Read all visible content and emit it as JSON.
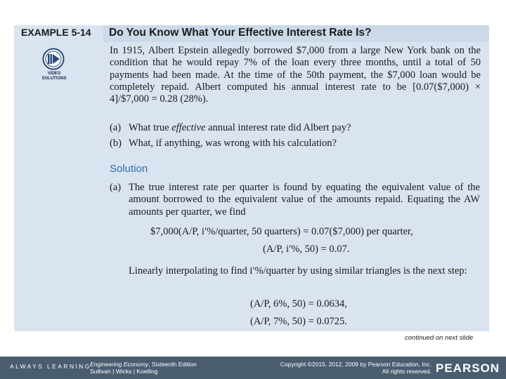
{
  "example": {
    "label": "EXAMPLE 5-14",
    "title": "Do You Know What Your Effective Interest Rate Is?",
    "video_caption_1": "VIDEO",
    "video_caption_2": "SOLUTIONS"
  },
  "problem": {
    "text": "In 1915, Albert Epstein allegedly borrowed $7,000 from a large New York bank on the condition that he would repay 7% of the loan every three months, until a total of 50 payments had been made. At the time of the 50th payment, the $7,000 loan would be completely repaid. Albert computed his annual interest rate to be [0.07($7,000) × 4]/$7,000 = 0.28 (28%).",
    "questions": [
      {
        "label": "(a)",
        "pre": "What true ",
        "em": "effective",
        "post": " annual interest rate did Albert pay?"
      },
      {
        "label": "(b)",
        "pre": "What, if anything, was wrong with his calculation?",
        "em": "",
        "post": ""
      }
    ]
  },
  "solution": {
    "heading": "Solution",
    "part_a_label": "(a)",
    "part_a_text": "The true interest rate per quarter is found by equating the equivalent value of the amount borrowed to the equivalent value of the amounts repaid. Equating the AW amounts per quarter, we find",
    "eq1": "$7,000(A/P, i′%/quarter, 50 quarters) = 0.07($7,000) per quarter,",
    "eq2": "(A/P, i′%, 50) = 0.07.",
    "interp_text": "Linearly interpolating to find i′%/quarter by using similar triangles is the next step:",
    "eq3": "(A/P, 6%, 50) = 0.0634,",
    "eq4": "(A/P, 7%, 50) = 0.0725."
  },
  "continued": "continued on next slide",
  "footer": {
    "brand": "ALWAYS LEARNING",
    "book_title": "Engineering Economy",
    "edition": ", Sixteenth Edition",
    "authors": "Sullivan | Wicks | Koelling",
    "copyright_line1": "Copyright ©2015, 2012, 2009 by Pearson Education, Inc.",
    "copyright_line2": "All rights reserved.",
    "publisher": "PEARSON"
  },
  "colors": {
    "panel": "#d9e4f0",
    "header_bar": "#cbd9e8",
    "solution_heading": "#2b6cb0",
    "footer": "#4a5d70"
  }
}
